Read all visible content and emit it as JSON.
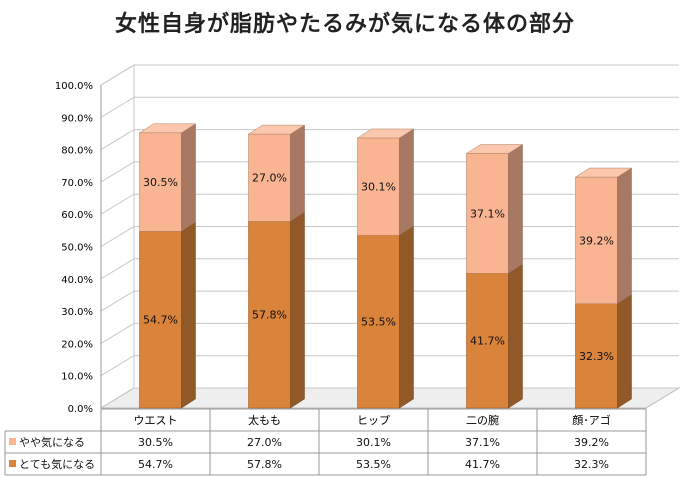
{
  "chart_data": {
    "type": "bar",
    "stacked": true,
    "title": "女性自身が脂肪やたるみが気になる体の部分",
    "categories": [
      "ウエスト",
      "太もも",
      "ヒップ",
      "二の腕",
      "顔･アゴ"
    ],
    "series": [
      {
        "name": "とても気になる",
        "values": [
          54.7,
          57.8,
          53.5,
          41.7,
          32.3
        ],
        "labels": [
          "54.7%",
          "57.8%",
          "53.5%",
          "41.7%",
          "32.3%"
        ],
        "color": "#D9833B"
      },
      {
        "name": "やや気になる",
        "values": [
          30.5,
          27.0,
          30.1,
          37.1,
          39.2
        ],
        "labels": [
          "30.5%",
          "27.0%",
          "30.1%",
          "37.1%",
          "39.2%"
        ],
        "color": "#F9B592"
      }
    ],
    "ylim": [
      0,
      100
    ],
    "yticks": [
      "0.0%",
      "10.0%",
      "20.0%",
      "30.0%",
      "40.0%",
      "50.0%",
      "60.0%",
      "70.0%",
      "80.0%",
      "90.0%",
      "100.0%"
    ],
    "grid": true,
    "legend": "data-table"
  }
}
